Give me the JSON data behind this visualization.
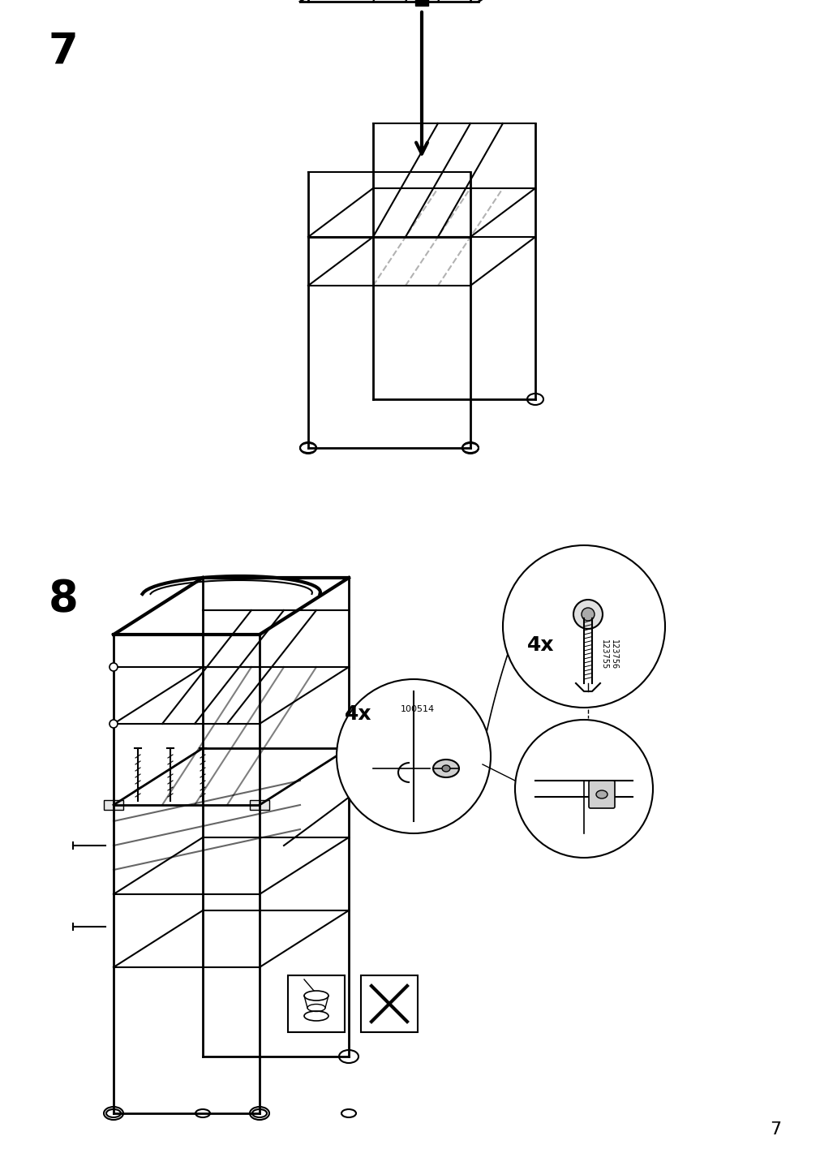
{
  "page_num": "7",
  "step7_label": "7",
  "step8_label": "8",
  "bg_color": "#ffffff",
  "line_color": "#000000",
  "part_color_nut": "#cccccc",
  "text_4x_1": "4x",
  "text_4x_2": "4x",
  "part_id_nut": "100514",
  "part_id_bolt1": "123755",
  "part_id_bolt2": "123756",
  "page_label": "7"
}
